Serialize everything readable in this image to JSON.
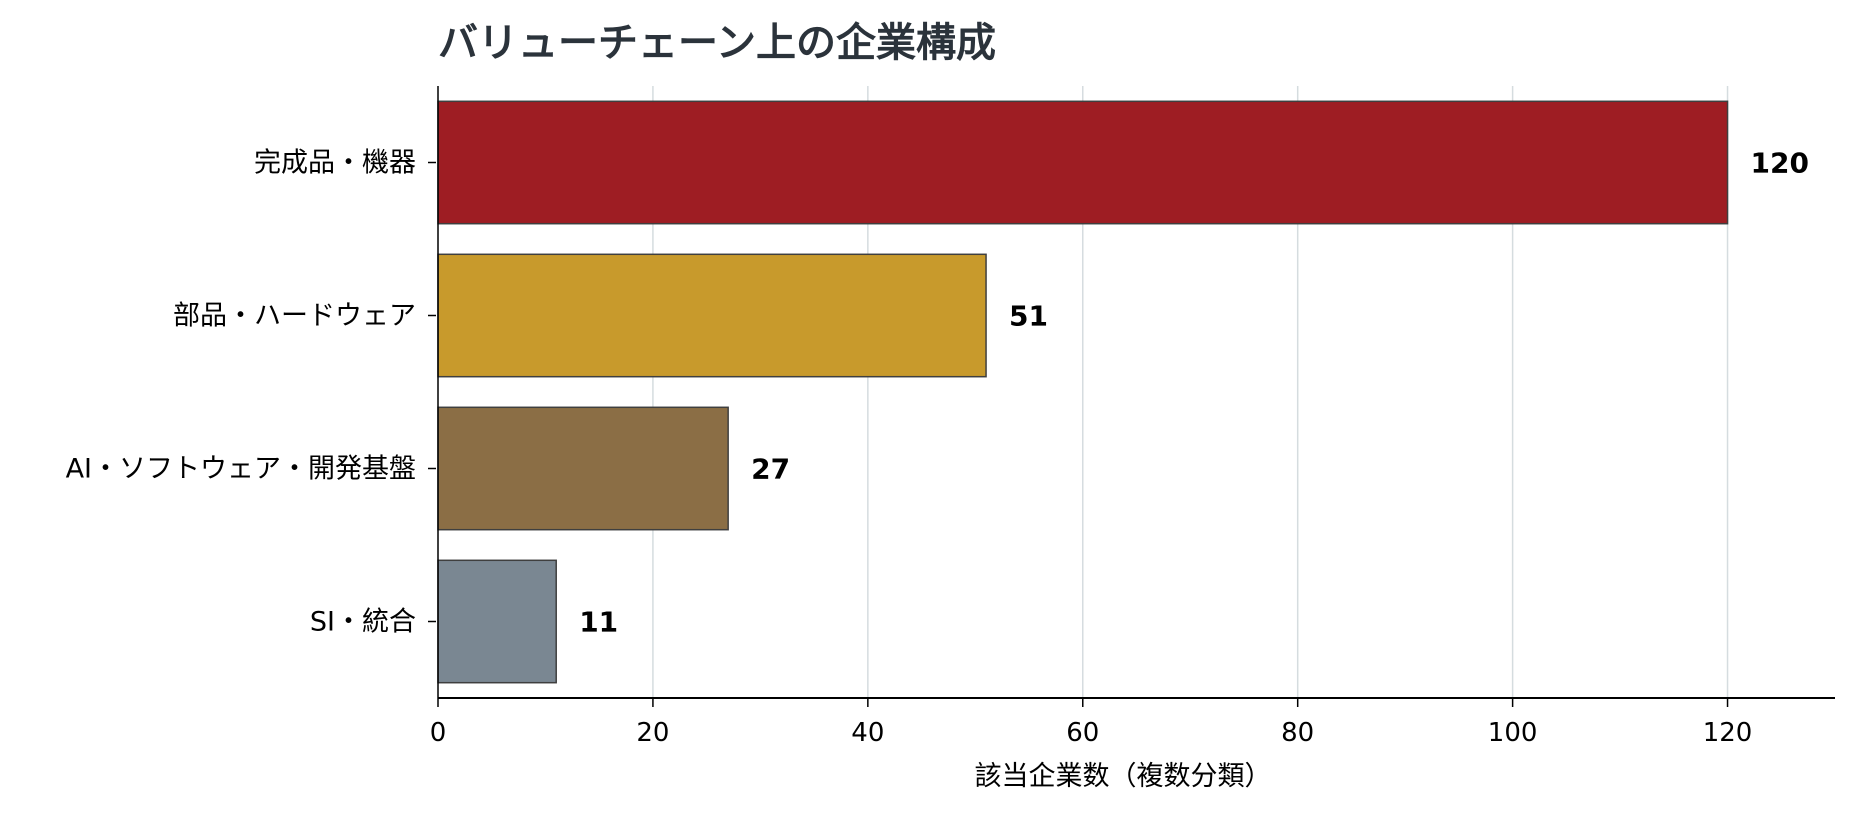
{
  "chart_data": {
    "type": "bar",
    "orientation": "horizontal",
    "title": "バリューチェーン上の企業構成",
    "xlabel": "該当企業数（複数分類）",
    "ylabel": "",
    "categories": [
      "完成品・機器",
      "部品・ハードウェア",
      "AI・ソフトウェア・開発基盤",
      "SI・統合"
    ],
    "values": [
      120,
      51,
      27,
      11
    ],
    "data_labels": [
      "120",
      "51",
      "27",
      "11"
    ],
    "colors": [
      "#9e1d23",
      "#c89a2c",
      "#8b6e45",
      "#7a8792"
    ],
    "xlim": [
      0,
      130
    ],
    "xticks": [
      0,
      20,
      40,
      60,
      80,
      100,
      120
    ],
    "xtick_labels": [
      "0",
      "20",
      "40",
      "60",
      "80",
      "100",
      "120"
    ],
    "grid": "vertical",
    "legend": "none"
  }
}
